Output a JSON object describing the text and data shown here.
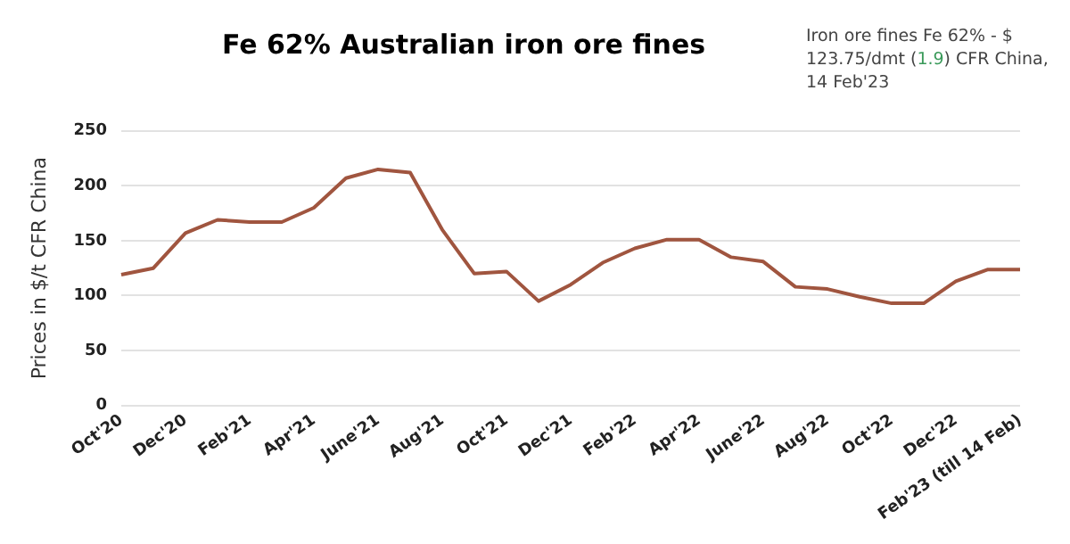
{
  "chart_data": {
    "type": "line",
    "title": "Fe 62% Australian iron ore fines",
    "ylabel": "Prices in $/t CFR China",
    "annotations": [
      "Iron ore fines Fe 62% - $ 123.75/dmt (1.9) CFR China, 14 Feb'23"
    ],
    "categories": [
      "Oct'20",
      null,
      "Dec'20",
      null,
      "Feb'21",
      null,
      "Apr'21",
      null,
      "June'21",
      null,
      "Aug'21",
      null,
      "Oct'21",
      null,
      "Dec'21",
      null,
      "Feb'22",
      null,
      "Apr'22",
      null,
      "June'22",
      null,
      "Aug'22",
      null,
      "Oct'22",
      null,
      "Dec'22",
      null,
      "Feb'23 (till 14 Feb)"
    ],
    "series": [
      {
        "color": "#a0553f",
        "values": [
          119,
          125,
          157,
          169,
          167,
          167,
          180,
          207,
          215,
          212,
          160,
          120,
          122,
          95,
          110,
          130,
          143,
          151,
          151,
          135,
          131,
          108,
          106,
          99,
          93,
          93,
          113,
          123.75,
          123.75
        ]
      }
    ],
    "ylim": [
      0,
      250
    ],
    "yticks": [
      0,
      50,
      100,
      150,
      200,
      250
    ],
    "grid": "y",
    "legend": false,
    "marker": "none",
    "line_style": "solid"
  }
}
